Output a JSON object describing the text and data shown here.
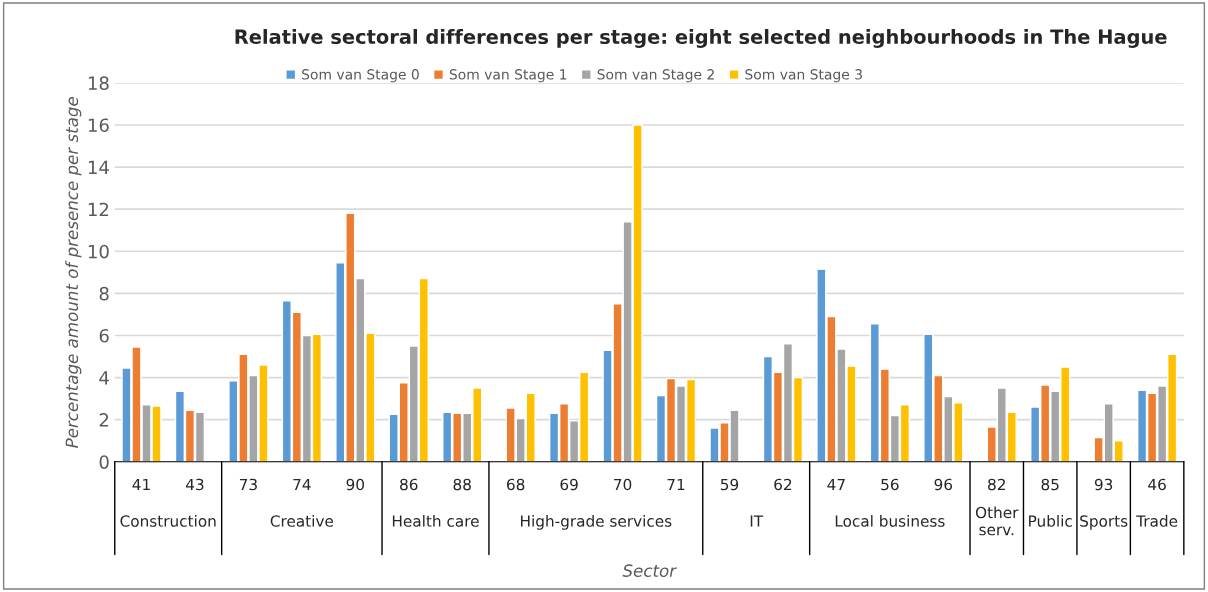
{
  "chart_data": {
    "type": "bar",
    "title": "Relative sectoral differences per stage: eight selected neighbourhoods in The Hague",
    "xlabel": "Sector",
    "ylabel": "Percentage amount of presence per stage",
    "categories": [
      "41",
      "43",
      "73",
      "74",
      "90",
      "86",
      "88",
      "68",
      "69",
      "70",
      "71",
      "59",
      "62",
      "47",
      "56",
      "96",
      "82",
      "85",
      "93",
      "46"
    ],
    "series": [
      {
        "name": "Som van Stage 0",
        "color": "#5b9bd5",
        "values": [
          4.45,
          3.35,
          3.85,
          7.65,
          9.45,
          2.25,
          2.35,
          null,
          2.3,
          5.3,
          3.15,
          1.6,
          5.0,
          9.15,
          6.55,
          6.05,
          null,
          2.6,
          null,
          3.4
        ]
      },
      {
        "name": "Som van Stage 1",
        "color": "#ed7d31",
        "values": [
          5.45,
          2.45,
          5.1,
          7.1,
          11.8,
          3.75,
          2.3,
          2.55,
          2.75,
          7.5,
          3.95,
          1.85,
          4.25,
          6.9,
          4.4,
          4.1,
          1.65,
          3.65,
          1.15,
          3.25
        ]
      },
      {
        "name": "Som van Stage 2",
        "color": "#a5a5a5",
        "values": [
          2.7,
          2.35,
          4.1,
          6.0,
          8.7,
          5.5,
          2.3,
          2.05,
          1.95,
          11.4,
          3.6,
          2.45,
          5.6,
          5.35,
          2.2,
          3.1,
          3.5,
          3.35,
          2.75,
          3.6
        ]
      },
      {
        "name": "Som van Stage 3",
        "color": "#ffc000",
        "values": [
          2.65,
          null,
          4.6,
          6.05,
          6.1,
          8.7,
          3.5,
          3.25,
          4.25,
          16.0,
          3.9,
          null,
          4.0,
          4.55,
          2.7,
          2.8,
          2.35,
          4.5,
          1.0,
          5.1
        ]
      }
    ],
    "annotations": [
      "Construction",
      "Creative",
      "Health care",
      "High-grade services",
      "IT",
      "Local business",
      "Other serv.",
      "Public",
      "Sports",
      "Trade"
    ],
    "ylim": [
      0,
      18
    ],
    "yticks": [
      0,
      2,
      4,
      6,
      8,
      10,
      12,
      14,
      16,
      18
    ],
    "grid": "y",
    "legend": "top"
  }
}
